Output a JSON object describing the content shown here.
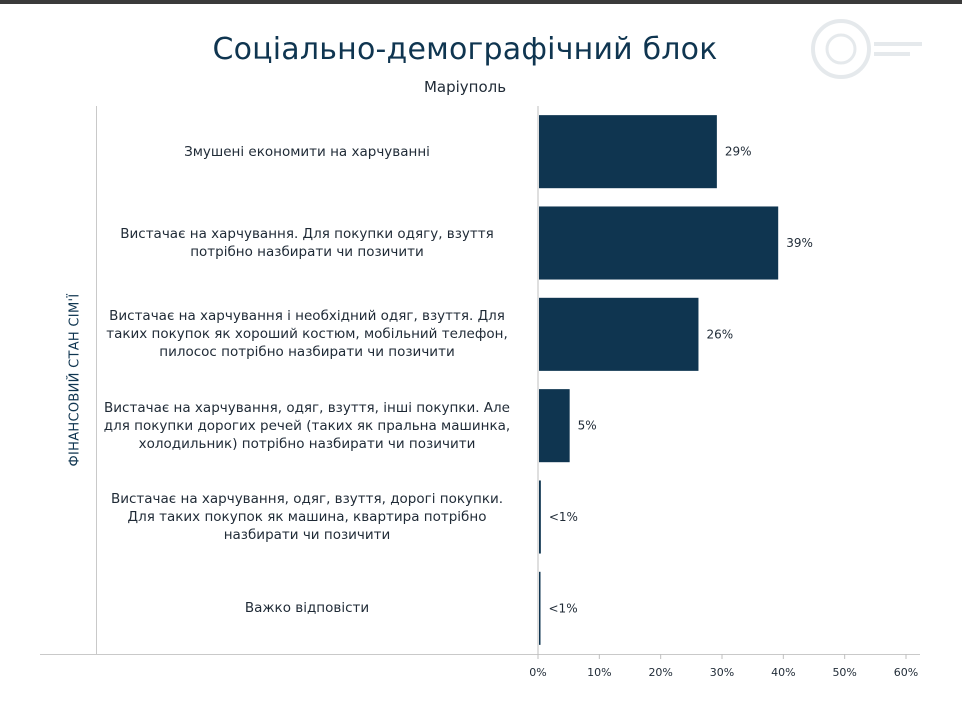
{
  "title": "Соціально-демографічний блок",
  "subtitle": "Маріуполь",
  "colors": {
    "bar": "#0f3550",
    "title": "#0f3550",
    "axis": "#c9c9c9"
  },
  "chart_data": {
    "type": "bar",
    "orientation": "horizontal",
    "title": "Соціально-демографічний блок",
    "subtitle": "Маріуполь",
    "ylabel": "ФІНАНСОВИЙ СТАН СІМ'Ї",
    "xlim": [
      0,
      60
    ],
    "xticks": [
      0,
      10,
      20,
      30,
      40,
      50,
      60
    ],
    "xtick_labels": [
      "0%",
      "10%",
      "20%",
      "30%",
      "40%",
      "50%",
      "60%"
    ],
    "categories": [
      "Змушені економити на харчуванні",
      "Вистачає на харчування. Для покупки одягу, взуття\nпотрібно назбирати чи позичити",
      "Вистачає на харчування і необхідний одяг, взуття. Для\nтаких покупок як хороший костюм, мобільний телефон,\nпилосос потрібно назбирати чи позичити",
      "Вистачає на харчування, одяг, взуття, інші покупки. Але\nдля покупки дорогих речей (таких як пральна машинка,\nхолодильник) потрібно назбирати чи позичити",
      "Вистачає на харчування, одяг, взуття, дорогі покупки.\nДля  таких покупок як машина, квартира потрібно\nназбирати чи позичити",
      "Важко відповісти"
    ],
    "values": [
      29,
      39,
      26,
      5,
      0.3,
      0.1
    ],
    "value_labels": [
      "29%",
      "39%",
      "26%",
      "5%",
      "<1%",
      "<1%"
    ],
    "grid": false,
    "legend": "none"
  }
}
